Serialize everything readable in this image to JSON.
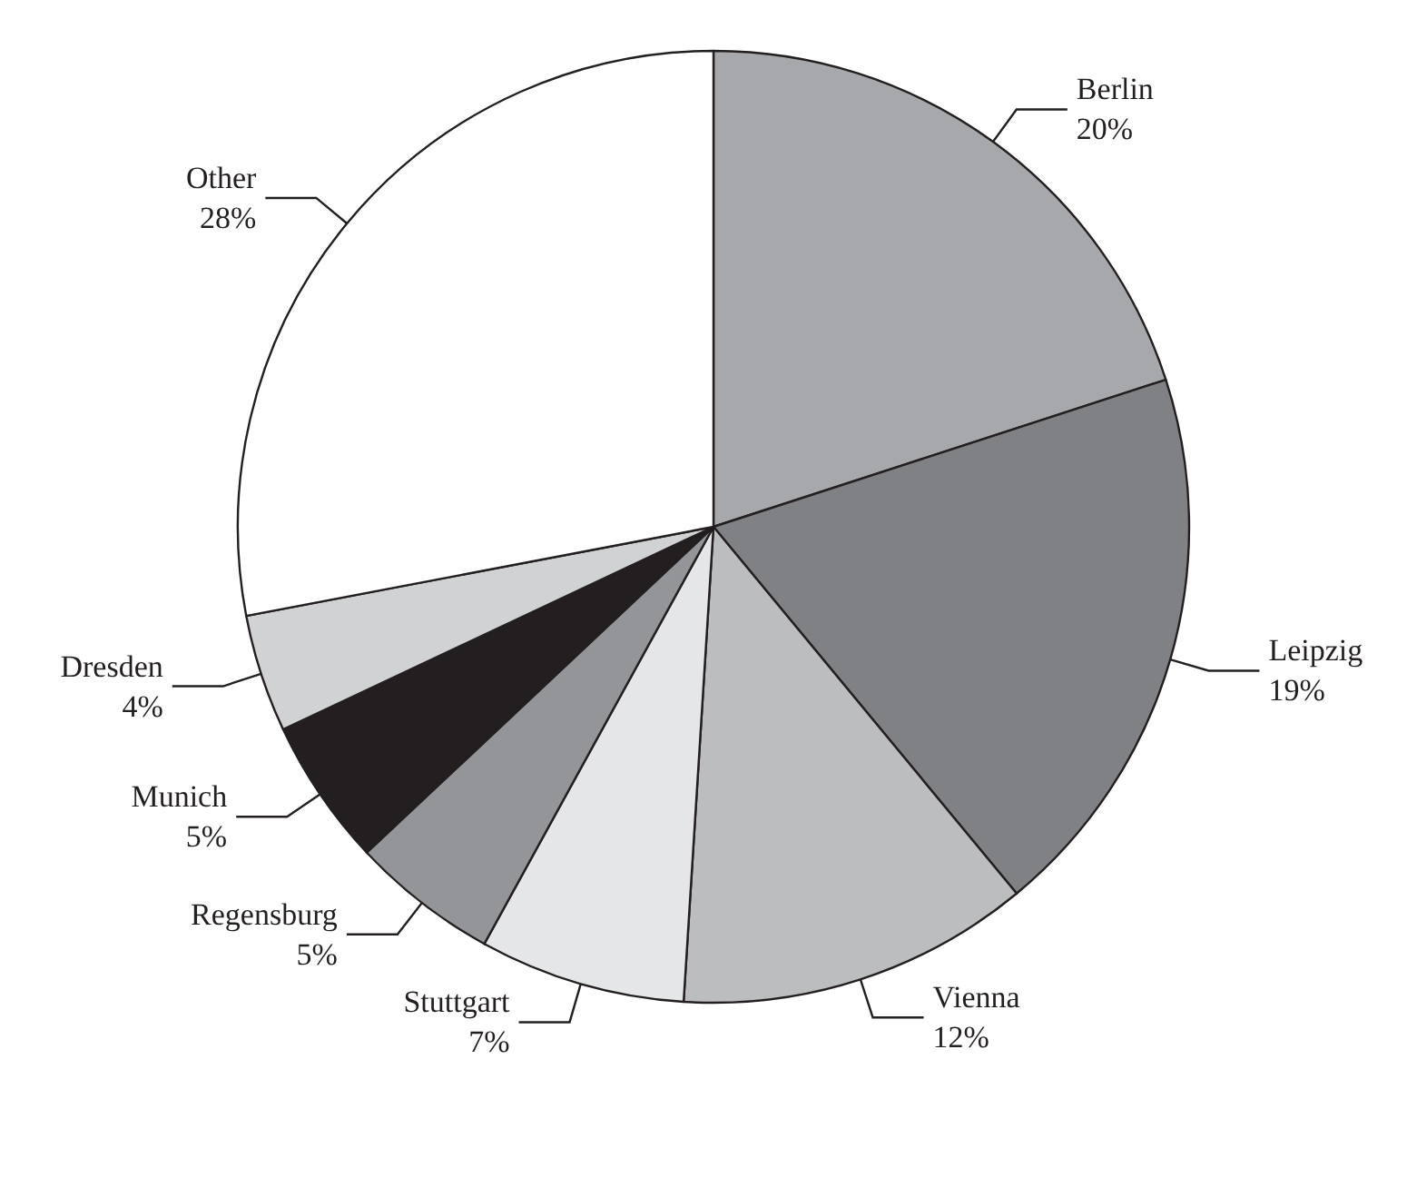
{
  "chart_data": {
    "type": "pie",
    "categories": [
      "Berlin",
      "Leipzig",
      "Vienna",
      "Stuttgart",
      "Regensburg",
      "Munich",
      "Dresden",
      "Other"
    ],
    "values": [
      20,
      19,
      12,
      7,
      5,
      5,
      4,
      28
    ],
    "value_labels": [
      "20%",
      "19%",
      "12%",
      "7%",
      "5%",
      "5%",
      "4%",
      "28%"
    ],
    "colors": [
      "#a7a8ab",
      "#808184",
      "#bcbdbf",
      "#e5e6e7",
      "#939598",
      "#231f20",
      "#d1d2d4",
      "#ffffff"
    ],
    "legend": false
  }
}
